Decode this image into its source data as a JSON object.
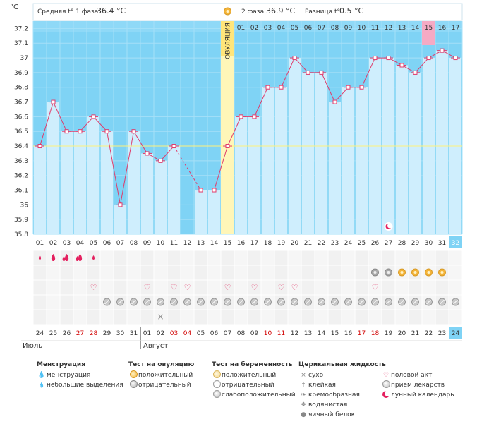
{
  "header": {
    "unit": "°C",
    "phase1_label": "Средняя t° 1 фаза",
    "phase1_value": "36.4 °C",
    "phase2_label": "2 фаза",
    "phase2_value": "36.9 °C",
    "diff_label": "Разница t°",
    "diff_value": "0.5 °C"
  },
  "ovulation_label": "ОВУЛЯЦИЯ",
  "colors": {
    "plot_bg": "#7fd3f5",
    "bar_fill": "#cfeefd",
    "bar_stroke": "#9ed6ef",
    "line": "#e03a6a",
    "ovulation": "#fff6b8",
    "highlight": "#f5aac4",
    "today": "#7fd3f5",
    "guide": "#fff27a"
  },
  "chart_data": {
    "type": "line",
    "title": "",
    "ylabel": "°C",
    "ylim": [
      35.8,
      37.25
    ],
    "yticks": [
      "35.8",
      "35.9",
      "36",
      "36.1",
      "36.2",
      "36.3",
      "36.4",
      "36.5",
      "36.6",
      "36.7",
      "36.8",
      "36.9",
      "37",
      "37.1",
      "37.2"
    ],
    "cycle_days": [
      "01",
      "02",
      "03",
      "04",
      "05",
      "06",
      "07",
      "08",
      "09",
      "10",
      "11",
      "12",
      "13",
      "14",
      "15",
      "16",
      "17",
      "18",
      "19",
      "20",
      "21",
      "22",
      "23",
      "24",
      "25",
      "26",
      "27",
      "28",
      "29",
      "30",
      "31",
      "32"
    ],
    "dates": [
      "24",
      "25",
      "26",
      "27",
      "28",
      "29",
      "30",
      "31",
      "01",
      "02",
      "03",
      "04",
      "05",
      "06",
      "07",
      "08",
      "09",
      "10",
      "11",
      "12",
      "13",
      "14",
      "15",
      "16",
      "17",
      "18",
      "19",
      "20",
      "21",
      "22",
      "23",
      "24"
    ],
    "weekend_dates_red": [
      3,
      4,
      10,
      11,
      17,
      18,
      24,
      25
    ],
    "months": [
      "Июль",
      "Август"
    ],
    "temperatures": [
      36.4,
      36.7,
      36.5,
      36.5,
      36.6,
      36.5,
      36.0,
      36.5,
      36.35,
      36.3,
      36.4,
      null,
      36.1,
      36.1,
      36.4,
      36.6,
      36.6,
      36.8,
      36.8,
      37.0,
      36.9,
      36.9,
      36.7,
      36.8,
      36.8,
      37.0,
      37.0,
      36.95,
      36.9,
      37.0,
      37.05,
      37.0
    ],
    "interpolated_segments": [
      [
        10,
        12
      ]
    ],
    "ovulation_day": "15",
    "post_ovulation_numbers": [
      "01",
      "02",
      "03",
      "04",
      "05",
      "06",
      "07",
      "08",
      "09",
      "10",
      "11",
      "12",
      "13",
      "14",
      "15",
      "16",
      "17"
    ],
    "highlighted_post_day": "15",
    "coverline": 36.4,
    "current_day": "32",
    "moon_day": "27",
    "symptoms": {
      "menstruation": {
        "2": "drop",
        "1": "drop-small",
        "3": "drop2",
        "4": "drop2",
        "5": "drop-small"
      },
      "ovulation_test": {
        "26": "neg",
        "27": "neg",
        "28": "pos",
        "29": "pos",
        "30": "pos",
        "31": "pos"
      },
      "sex": [
        5,
        9,
        11,
        12,
        15,
        17,
        19,
        20,
        26
      ],
      "pills": [
        6,
        7,
        8,
        9,
        10,
        11,
        12,
        13,
        14,
        15,
        16,
        17,
        18,
        19,
        20,
        21,
        22,
        23,
        24,
        25,
        26,
        27,
        28,
        29,
        30,
        31,
        32
      ],
      "cervical_dry": [
        10
      ]
    }
  },
  "legend": {
    "menstruation": {
      "title": "Менструация",
      "items": [
        "менструация",
        "небольшие выделения"
      ]
    },
    "ovulation_test": {
      "title": "Тест на овуляцию",
      "items": [
        "положительный",
        "отрицательный"
      ]
    },
    "pregnancy_test": {
      "title": "Тест на беременность",
      "items": [
        "положительный",
        "отрицательный",
        "слабоположительный"
      ]
    },
    "cervical": {
      "title": "Церикальная жидкость",
      "items": [
        "сухо",
        "клейкая",
        "кремообразная",
        "водянистая",
        "яичный белок"
      ]
    },
    "other": {
      "items": [
        "половой акт",
        "прием лекарств",
        "лунный календарь"
      ]
    }
  }
}
